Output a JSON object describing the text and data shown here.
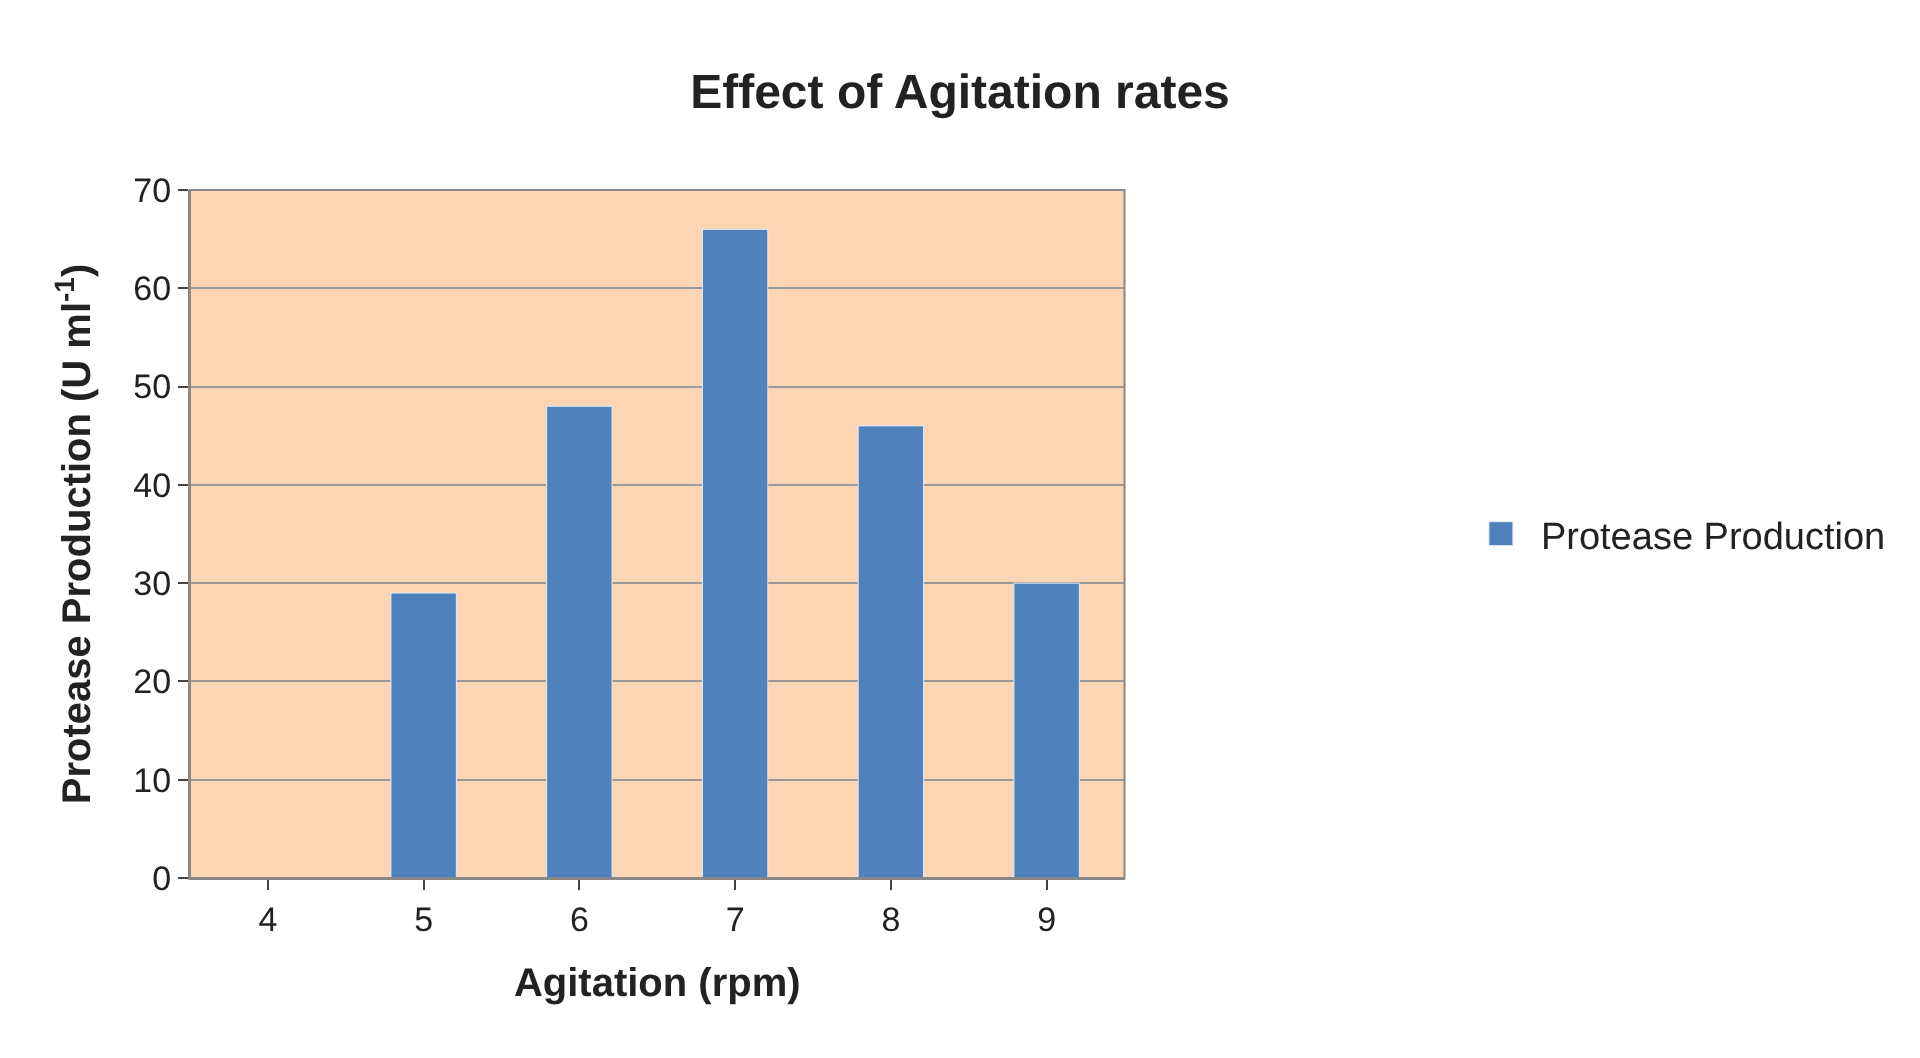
{
  "chart_data": {
    "type": "bar",
    "title": "Effect of Agitation rates",
    "xlabel": "Agitation (rpm)",
    "ylabel": "Protease Production (U ml$^{-1}$)",
    "categories": [
      "4",
      "5",
      "6",
      "7",
      "8",
      "9"
    ],
    "series": [
      {
        "name": "Protease Production",
        "color": "#4f81bd",
        "values": [
          null,
          29,
          48,
          66,
          46,
          30
        ]
      }
    ],
    "ylim": [
      0,
      70
    ],
    "yticks": [
      0,
      10,
      20,
      30,
      40,
      50,
      60,
      70
    ],
    "grid": "y",
    "legend": "right"
  }
}
